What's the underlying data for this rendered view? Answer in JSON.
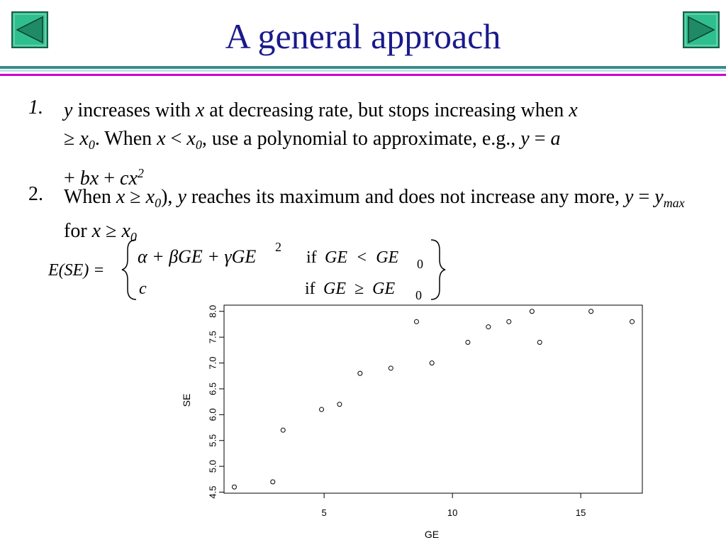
{
  "title": "A general approach",
  "nav": {
    "prev_icon": "triangle-left-icon",
    "next_icon": "triangle-right-icon",
    "button_color": "#2fbf8f"
  },
  "items": [
    {
      "number": "1.",
      "t1": "y",
      "t2": " increases with ",
      "t3": "x",
      "t4": " at decreasing rate, but stops increasing when ",
      "t5": "x",
      "t6": " ≥ ",
      "t7": "x",
      "t8": "0",
      "t9": ". When ",
      "t10": "x",
      "t11": " < ",
      "t12": "x",
      "t13": "0",
      "t14": ", use a polynomial to approximate, e.g., ",
      "t15": "y",
      "t16": " = ",
      "t17": "a",
      "t18": " + ",
      "t19": "bx",
      "t20": " + ",
      "t21": "cx",
      "t22": "2"
    },
    {
      "number": "2.",
      "t1": "When ",
      "t2": "x",
      "t3": "  ≥ ",
      "t4": "x",
      "t5": "0",
      "t6": "), ",
      "t7": "y",
      "t8": " reaches its maximum and does not increase any more,  ",
      "t9": "y",
      "t10": " = ",
      "t11": "y",
      "t12": "max",
      "t13": " for ",
      "t14": "x",
      "t15": " ≥ ",
      "t16": "x",
      "t17": "0"
    }
  ],
  "equation": {
    "lhs": "E(SE) =",
    "case1_expr": "α + βGE + γGE",
    "case1_exp": "2",
    "case1_cond_if": "if",
    "case1_cond": "GE  <  GE",
    "case1_sub": "0",
    "case2_expr": "c",
    "case2_cond_if": "if",
    "case2_cond": "GE  ≥  GE",
    "case2_sub": "0"
  },
  "chart_data": {
    "type": "scatter",
    "title": "",
    "xlabel": "GE",
    "ylabel": "SE",
    "x_ticks": [
      "5",
      "10",
      "15"
    ],
    "y_ticks": [
      "4.5",
      "5.0",
      "5.5",
      "6.0",
      "6.5",
      "7.0",
      "7.5",
      "8.0"
    ],
    "xlim": [
      1.1,
      17.4
    ],
    "ylim": [
      4.48,
      8.12
    ],
    "grid": false,
    "points": [
      [
        1.5,
        4.6
      ],
      [
        3.0,
        4.7
      ],
      [
        3.4,
        5.7
      ],
      [
        4.9,
        6.1
      ],
      [
        5.6,
        6.2
      ],
      [
        6.4,
        6.8
      ],
      [
        7.6,
        6.9
      ],
      [
        8.6,
        7.8
      ],
      [
        9.2,
        7.0
      ],
      [
        10.6,
        7.4
      ],
      [
        11.4,
        7.7
      ],
      [
        12.2,
        7.8
      ],
      [
        13.1,
        8.0
      ],
      [
        13.4,
        7.4
      ],
      [
        15.4,
        8.0
      ],
      [
        17.0,
        7.8
      ]
    ]
  }
}
